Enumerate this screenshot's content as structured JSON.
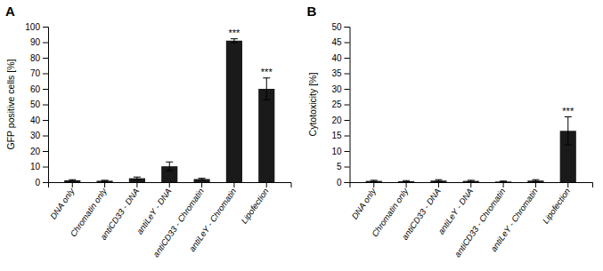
{
  "chart_data": [
    {
      "type": "bar",
      "title": "A",
      "ylabel": "GFP positive cells [%]",
      "categories": [
        "DNA only",
        "Chromatin only",
        "antiCD33 - DNA",
        "antiLeY - DNA",
        "antiCD33 - Chromatin",
        "antiLeY - Chromatin",
        "Lipofection"
      ],
      "values": [
        1.2,
        0.9,
        2.5,
        10.2,
        2.0,
        91.0,
        60.0
      ],
      "errors": [
        0.4,
        0.3,
        0.8,
        2.8,
        0.5,
        1.2,
        7.0
      ],
      "color": "#1a1a1a",
      "ylim": [
        0,
        100
      ],
      "yticks": [
        0,
        10,
        20,
        30,
        40,
        50,
        60,
        70,
        80,
        90,
        100
      ],
      "annotations": [
        {
          "x": "antiLeY - Chromatin",
          "text": "***"
        },
        {
          "x": "Lipofection",
          "text": "***"
        }
      ]
    },
    {
      "type": "bar",
      "title": "B",
      "ylabel": "Cytotoxicity [%]",
      "categories": [
        "DNA only",
        "Chromatin only",
        "antiCD33 - DNA",
        "antiLeY - DNA",
        "antiCD33 - Chromatin",
        "antiLeY - Chromatin",
        "Lipofection"
      ],
      "values": [
        0.4,
        0.3,
        0.5,
        0.4,
        0.2,
        0.5,
        16.5
      ],
      "errors": [
        0.2,
        0.2,
        0.3,
        0.2,
        0.15,
        0.3,
        4.5
      ],
      "color": "#1a1a1a",
      "ylim": [
        0,
        50
      ],
      "yticks": [
        0,
        5,
        10,
        15,
        20,
        25,
        30,
        35,
        40,
        45,
        50
      ],
      "annotations": [
        {
          "x": "Lipofection",
          "text": "***"
        }
      ]
    }
  ]
}
